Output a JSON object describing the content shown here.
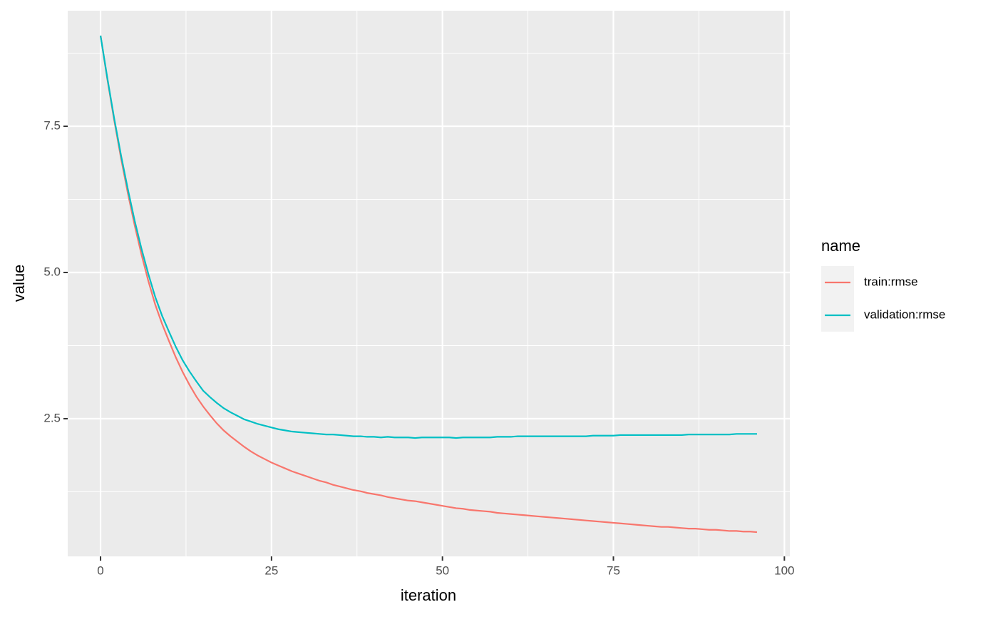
{
  "chart_data": {
    "type": "line",
    "x_label": "iteration",
    "y_label": "value",
    "legend_title": "name",
    "legend_position": "right",
    "x": [
      0,
      1,
      2,
      3,
      4,
      5,
      6,
      7,
      8,
      9,
      10,
      11,
      12,
      13,
      14,
      15,
      16,
      17,
      18,
      19,
      20,
      21,
      22,
      23,
      24,
      25,
      26,
      27,
      28,
      29,
      30,
      31,
      32,
      33,
      34,
      35,
      36,
      37,
      38,
      39,
      40,
      41,
      42,
      43,
      44,
      45,
      46,
      47,
      48,
      49,
      50,
      51,
      52,
      53,
      54,
      55,
      56,
      57,
      58,
      59,
      60,
      61,
      62,
      63,
      64,
      65,
      66,
      67,
      68,
      69,
      70,
      71,
      72,
      73,
      74,
      75,
      76,
      77,
      78,
      79,
      80,
      81,
      82,
      83,
      84,
      85,
      86,
      87,
      88,
      89,
      90,
      91,
      92,
      93,
      94,
      95,
      96
    ],
    "series": [
      {
        "name": "train:rmse",
        "color": "#f8766d",
        "values": [
          9.05,
          8.3,
          7.6,
          6.95,
          6.35,
          5.8,
          5.3,
          4.85,
          4.45,
          4.12,
          3.83,
          3.55,
          3.3,
          3.08,
          2.88,
          2.71,
          2.56,
          2.42,
          2.3,
          2.2,
          2.11,
          2.02,
          1.94,
          1.87,
          1.81,
          1.75,
          1.7,
          1.65,
          1.6,
          1.56,
          1.52,
          1.48,
          1.44,
          1.41,
          1.37,
          1.34,
          1.31,
          1.28,
          1.26,
          1.23,
          1.21,
          1.19,
          1.16,
          1.14,
          1.12,
          1.1,
          1.09,
          1.07,
          1.05,
          1.03,
          1.01,
          0.99,
          0.97,
          0.96,
          0.94,
          0.93,
          0.92,
          0.91,
          0.89,
          0.88,
          0.87,
          0.86,
          0.85,
          0.84,
          0.83,
          0.82,
          0.81,
          0.8,
          0.79,
          0.78,
          0.77,
          0.76,
          0.75,
          0.74,
          0.73,
          0.72,
          0.71,
          0.7,
          0.69,
          0.68,
          0.67,
          0.66,
          0.65,
          0.65,
          0.64,
          0.63,
          0.62,
          0.62,
          0.61,
          0.6,
          0.6,
          0.59,
          0.58,
          0.58,
          0.57,
          0.57,
          0.56
        ]
      },
      {
        "name": "validation:rmse",
        "color": "#00bfc4",
        "values": [
          9.05,
          8.32,
          7.63,
          7.0,
          6.42,
          5.88,
          5.4,
          4.97,
          4.58,
          4.26,
          3.99,
          3.73,
          3.5,
          3.31,
          3.14,
          2.98,
          2.87,
          2.77,
          2.68,
          2.61,
          2.55,
          2.49,
          2.45,
          2.41,
          2.38,
          2.35,
          2.32,
          2.3,
          2.28,
          2.27,
          2.26,
          2.25,
          2.24,
          2.23,
          2.23,
          2.22,
          2.21,
          2.2,
          2.2,
          2.19,
          2.19,
          2.18,
          2.19,
          2.18,
          2.18,
          2.18,
          2.17,
          2.18,
          2.18,
          2.18,
          2.18,
          2.18,
          2.17,
          2.18,
          2.18,
          2.18,
          2.18,
          2.18,
          2.19,
          2.19,
          2.19,
          2.2,
          2.2,
          2.2,
          2.2,
          2.2,
          2.2,
          2.2,
          2.2,
          2.2,
          2.2,
          2.2,
          2.21,
          2.21,
          2.21,
          2.21,
          2.22,
          2.22,
          2.22,
          2.22,
          2.22,
          2.22,
          2.22,
          2.22,
          2.22,
          2.22,
          2.23,
          2.23,
          2.23,
          2.23,
          2.23,
          2.23,
          2.23,
          2.24,
          2.24,
          2.24,
          2.24
        ]
      }
    ],
    "xlim": [
      -4.8,
      100.8
    ],
    "ylim": [
      0.146,
      9.476
    ],
    "xticks": [
      0,
      25,
      50,
      75,
      100
    ],
    "yticks": [
      2.5,
      {
        "value": 5,
        "label": "5.0"
      },
      7.5
    ],
    "xticks_minor": [
      12.5,
      37.5,
      62.5,
      87.5
    ],
    "yticks_minor": [
      1.25,
      3.75,
      6.25,
      8.75
    ],
    "grid": true
  }
}
